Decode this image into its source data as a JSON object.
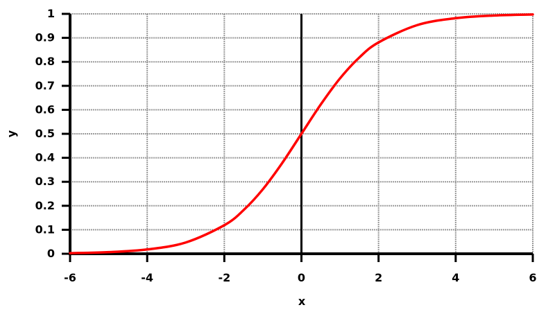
{
  "chart_data": {
    "type": "line",
    "title": "",
    "xlabel": "x",
    "ylabel": "y",
    "xlim": [
      -6,
      6
    ],
    "ylim": [
      0,
      1
    ],
    "x_ticks": [
      -6,
      -4,
      -2,
      0,
      2,
      4,
      6
    ],
    "x_tick_labels": [
      "-6",
      "-4",
      "-2",
      "0",
      "2",
      "4",
      "6"
    ],
    "y_ticks": [
      0,
      0.1,
      0.2,
      0.3,
      0.4,
      0.5,
      0.6,
      0.7,
      0.8,
      0.9,
      1
    ],
    "y_tick_labels": [
      "0",
      "0.1",
      "0.2",
      "0.3",
      "0.4",
      "0.5",
      "0.6",
      "0.7",
      "0.8",
      "0.9",
      "1"
    ],
    "grid": true,
    "series": [
      {
        "color": "#ff0000",
        "x": [
          -6,
          -5,
          -4,
          -3,
          -2,
          -1.5,
          -1,
          -0.5,
          0,
          0.5,
          1,
          1.5,
          2,
          3,
          4,
          5,
          6
        ],
        "y": [
          0.0025,
          0.0067,
          0.018,
          0.047,
          0.119,
          0.182,
          0.269,
          0.378,
          0.5,
          0.622,
          0.731,
          0.818,
          0.881,
          0.953,
          0.982,
          0.9933,
          0.9975
        ]
      }
    ],
    "colors": {
      "curve": "#ff0000",
      "axis": "#000000",
      "grid": "#999999"
    }
  }
}
